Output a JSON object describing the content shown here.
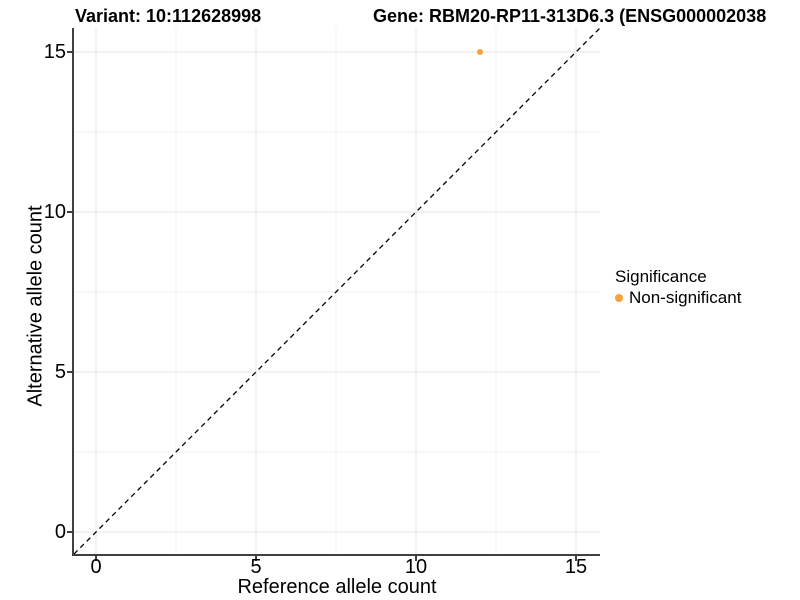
{
  "titles": {
    "variant": "Variant: 10:112628998",
    "gene": "Gene: RBM20-RP11-313D6.3 (ENSG000002038"
  },
  "legend": {
    "title": "Significance",
    "items": [
      {
        "label": "Non-significant",
        "marker": "dot-icon",
        "color": "#F8A13B"
      }
    ],
    "position": "right"
  },
  "chart_data": {
    "type": "scatter",
    "title_left": "Variant: 10:112628998",
    "title_right": "Gene: RBM20-RP11-313D6.3 (ENSG000002038",
    "xlabel": "Reference allele count",
    "ylabel": "Alternative allele count",
    "xlim": [
      -0.7,
      15.7
    ],
    "ylim": [
      -0.7,
      15.7
    ],
    "x_ticks": [
      0,
      5,
      10,
      15
    ],
    "y_ticks": [
      0,
      5,
      10,
      15
    ],
    "minor_ticks": [
      2.5,
      7.5,
      12.5
    ],
    "grid": "major and minor gridlines, light gray on white",
    "series": [
      {
        "name": "Non-significant",
        "color": "#F8A13B",
        "points": [
          [
            12,
            15
          ]
        ]
      }
    ],
    "reference_line": {
      "type": "identity y=x",
      "style": "dashed",
      "color": "#000000"
    },
    "legend_position": "right"
  },
  "colors": {
    "accent_orange": "#F8A13B",
    "grid_major": "#E6E6E6",
    "grid_minor": "#F1F1F1",
    "axis_line": "#404040",
    "text": "#000000"
  }
}
